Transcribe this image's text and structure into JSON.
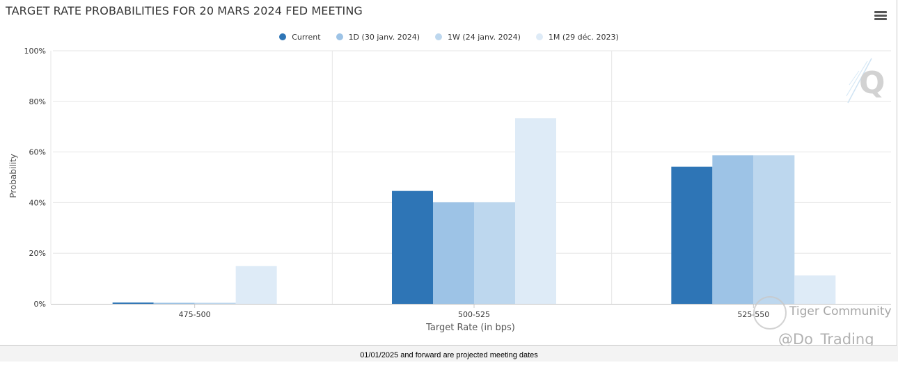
{
  "title": "TARGET RATE PROBABILITIES FOR 20 MARS 2024 FED MEETING",
  "footer": "01/01/2025 and forward are projected meeting dates",
  "watermark": {
    "brand": "Tiger Community",
    "handle": "@Do_Trading"
  },
  "chart_data": {
    "type": "bar",
    "title": "TARGET RATE PROBABILITIES FOR 20 MARS 2024 FED MEETING",
    "xlabel": "Target Rate (in bps)",
    "ylabel": "Probability",
    "categories": [
      "475-500",
      "500-525",
      "525-550"
    ],
    "ylim": [
      0,
      100
    ],
    "yticks": [
      "0%",
      "20%",
      "40%",
      "60%",
      "80%",
      "100%"
    ],
    "grid": true,
    "legend_position": "top-center",
    "series": [
      {
        "name": "Current",
        "color": "#2e75b6",
        "values": [
          0.5,
          44.6,
          54.2
        ]
      },
      {
        "name": "1D (30 janv. 2024)",
        "color": "#9dc3e6",
        "values": [
          0.4,
          40.1,
          58.7
        ]
      },
      {
        "name": "1W (24 janv. 2024)",
        "color": "#bdd7ee",
        "values": [
          0.4,
          40.1,
          58.7
        ]
      },
      {
        "name": "1M (29 déc. 2023)",
        "color": "#deebf7",
        "values": [
          14.9,
          73.3,
          11.2
        ]
      }
    ]
  }
}
